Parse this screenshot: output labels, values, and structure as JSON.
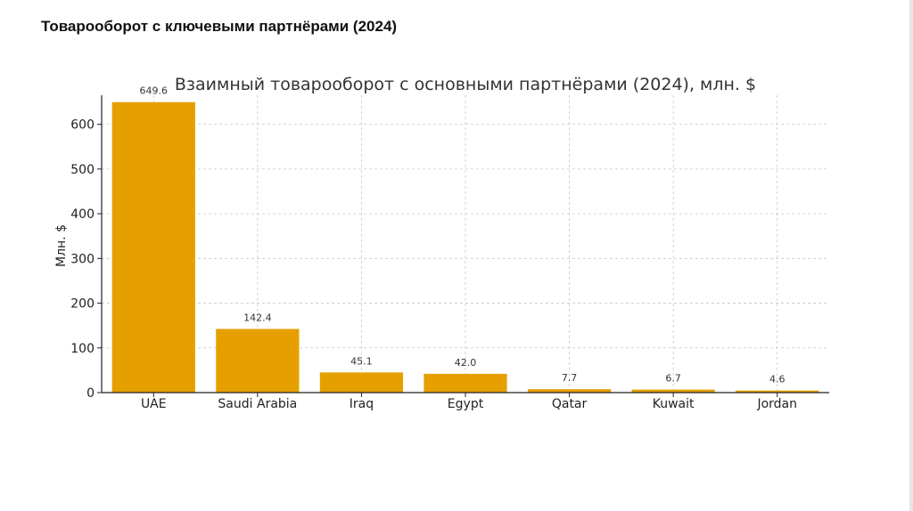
{
  "slide": {
    "title": "Товарооборот с ключевыми партнёрами (2024)"
  },
  "chart_data": {
    "type": "bar",
    "title": "Взаимный товарооборот с основными партнёрами (2024), млн. $",
    "xlabel": "",
    "ylabel": "Млн. $",
    "categories": [
      "UAE",
      "Saudi Arabia",
      "Iraq",
      "Egypt",
      "Qatar",
      "Kuwait",
      "Jordan"
    ],
    "values": [
      649.6,
      142.4,
      45.1,
      42.0,
      7.7,
      6.7,
      4.6
    ],
    "value_labels": [
      "649.6",
      "142.4",
      "45.1",
      "42.0",
      "7.7",
      "6.7",
      "4.6"
    ],
    "yticks": [
      0,
      100,
      200,
      300,
      400,
      500,
      600
    ],
    "ylim": [
      0,
      665
    ],
    "grid": true,
    "legend": "none",
    "bar_color": "#E5A000"
  }
}
